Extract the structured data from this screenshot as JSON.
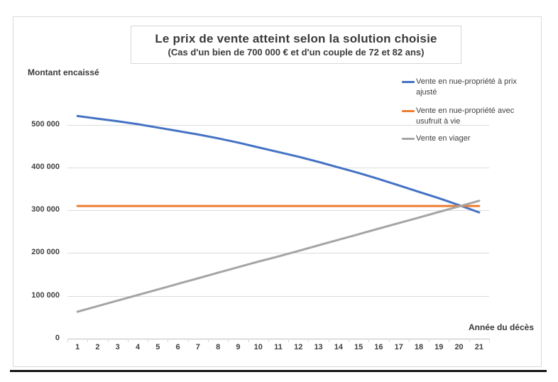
{
  "chart": {
    "title": "Le prix de vente atteint selon la solution choisie",
    "subtitle": "(Cas d'un bien de 700 000 € et d'un couple de 72 et 82 ans)",
    "y_axis_title": "Montant encaissé",
    "x_axis_title": "Année du décès",
    "y_tick_labels": [
      "0",
      "100 000",
      "200 000",
      "300 000",
      "400 000",
      "500 000"
    ],
    "x_tick_labels": [
      "1",
      "2",
      "3",
      "4",
      "5",
      "6",
      "7",
      "8",
      "9",
      "10",
      "11",
      "12",
      "13",
      "14",
      "15",
      "16",
      "17",
      "18",
      "19",
      "20",
      "21"
    ]
  },
  "colors": {
    "series_blue": "#4472C4",
    "series_orange": "#ED7D31",
    "series_gray": "#A5A5A5",
    "gridline": "#dcdcdc",
    "axis": "#bfbfbf",
    "text": "#404040"
  },
  "chart_data": {
    "type": "line",
    "x": [
      1,
      2,
      3,
      4,
      5,
      6,
      7,
      8,
      9,
      10,
      11,
      12,
      13,
      14,
      15,
      16,
      17,
      18,
      19,
      20,
      21
    ],
    "xlabel": "Année du décès",
    "ylabel": "Montant encaissé",
    "ylim": [
      0,
      550000
    ],
    "grid": "horizontal",
    "legend_position": "right",
    "series": [
      {
        "name": "Vente en nue-propriété à prix ajusté",
        "color": "#4472C4",
        "values": [
          520000,
          514000,
          508000,
          501000,
          493000,
          485000,
          477000,
          468000,
          458000,
          447000,
          436000,
          425000,
          413000,
          400000,
          387000,
          373000,
          358000,
          343000,
          328000,
          312000,
          295000
        ]
      },
      {
        "name": "Vente en nue-propriété avec usufruit à vie",
        "color": "#ED7D31",
        "values": [
          310000,
          310000,
          310000,
          310000,
          310000,
          310000,
          310000,
          310000,
          310000,
          310000,
          310000,
          310000,
          310000,
          310000,
          310000,
          310000,
          310000,
          310000,
          310000,
          310000,
          310000
        ]
      },
      {
        "name": "Vente en viager",
        "color": "#A5A5A5",
        "values": [
          63000,
          76000,
          89000,
          102000,
          115000,
          128000,
          141000,
          154000,
          167000,
          180000,
          192000,
          205000,
          218000,
          231000,
          244000,
          257000,
          270000,
          283000,
          296000,
          309000,
          322000
        ]
      }
    ]
  }
}
